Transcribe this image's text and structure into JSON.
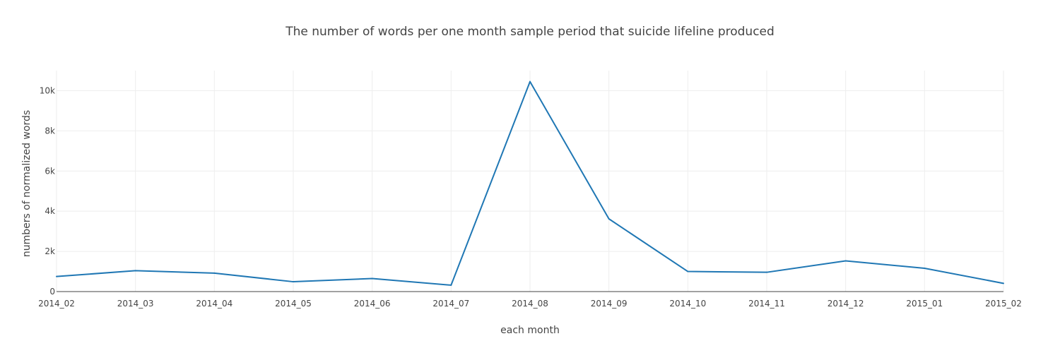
{
  "chart_data": {
    "type": "line",
    "title": "The number of words per one month sample period that suicide lifeline produced",
    "xlabel": "each month",
    "ylabel": "numbers of normalized words",
    "categories": [
      "2014_02",
      "2014_03",
      "2014_04",
      "2014_05",
      "2014_06",
      "2014_07",
      "2014_08",
      "2014_09",
      "2014_10",
      "2014_11",
      "2014_12",
      "2015_01",
      "2015_02"
    ],
    "series": [
      {
        "values": [
          750,
          1040,
          920,
          490,
          650,
          320,
          10450,
          3620,
          1000,
          960,
          1530,
          1160,
          410
        ],
        "color": "#1f77b4"
      }
    ],
    "ylim": [
      0,
      11000
    ],
    "yticks": [
      0,
      2000,
      4000,
      6000,
      8000,
      10000
    ],
    "ytick_labels": [
      "0",
      "2k",
      "4k",
      "6k",
      "8k",
      "10k"
    ],
    "grid": true,
    "legend": false
  }
}
